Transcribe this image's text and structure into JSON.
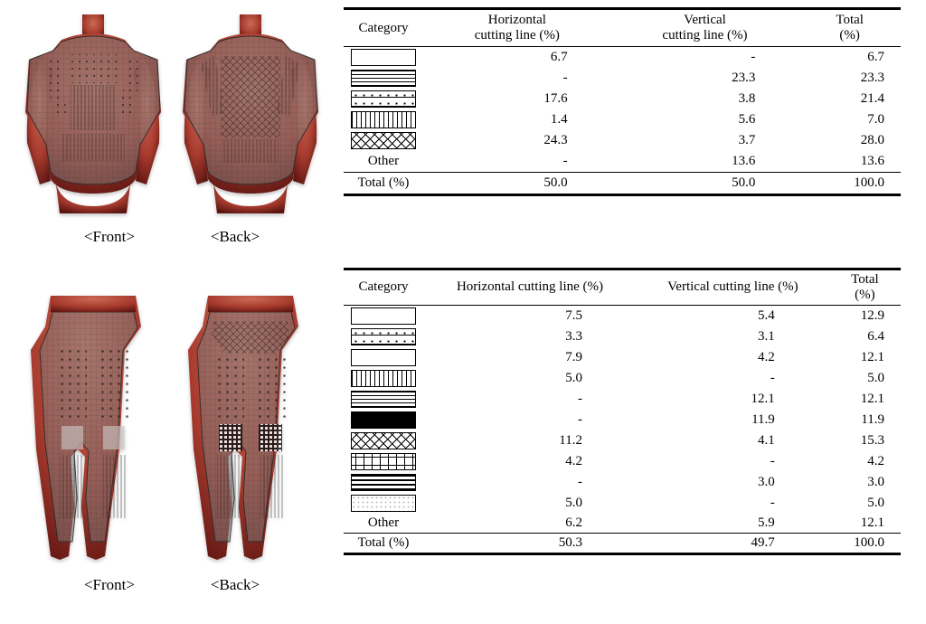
{
  "figures": {
    "upper": {
      "front_label": "<Front>",
      "back_label": "<Back>"
    },
    "lower": {
      "front_label": "<Front>",
      "back_label": "<Back>"
    }
  },
  "tables": {
    "upper": {
      "headers": {
        "cat": "Category",
        "h": "Horizontal\ncutting line (%)",
        "v": "Vertical\ncutting line (%)",
        "t": "Total\n(%)"
      },
      "rows": [
        {
          "pattern": "p-blank",
          "h": "6.7",
          "v": "-",
          "t": "6.7"
        },
        {
          "pattern": "p-hstripe",
          "h": "-",
          "v": "23.3",
          "t": "23.3"
        },
        {
          "pattern": "p-dotdash",
          "h": "17.6",
          "v": "3.8",
          "t": "21.4"
        },
        {
          "pattern": "p-vstripe",
          "h": "1.4",
          "v": "5.6",
          "t": "7.0"
        },
        {
          "pattern": "p-xhatch",
          "h": "24.3",
          "v": "3.7",
          "t": "28.0"
        },
        {
          "label": "Other",
          "h": "-",
          "v": "13.6",
          "t": "13.6"
        }
      ],
      "total": {
        "label": "Total (%)",
        "h": "50.0",
        "v": "50.0",
        "t": "100.0"
      }
    },
    "lower": {
      "headers": {
        "cat": "Category",
        "h": "Horizontal cutting line (%)",
        "v": "Vertical cutting line (%)",
        "t": "Total\n(%)"
      },
      "rows": [
        {
          "pattern": "p-blank",
          "h": "7.5",
          "v": "5.4",
          "t": "12.9"
        },
        {
          "pattern": "p-dotdash",
          "h": "3.3",
          "v": "3.1",
          "t": "6.4"
        },
        {
          "pattern": "p-blank",
          "h": "7.9",
          "v": "4.2",
          "t": "12.1"
        },
        {
          "pattern": "p-vstripe",
          "h": "5.0",
          "v": "-",
          "t": "5.0"
        },
        {
          "pattern": "p-hstripe",
          "h": "-",
          "v": "12.1",
          "t": "12.1"
        },
        {
          "pattern": "p-solid",
          "h": "-",
          "v": "11.9",
          "t": "11.9"
        },
        {
          "pattern": "p-xhatch",
          "h": "11.2",
          "v": "4.1",
          "t": "15.3"
        },
        {
          "pattern": "p-plus",
          "h": "4.2",
          "v": "-",
          "t": "4.2"
        },
        {
          "pattern": "p-grid",
          "h": "-",
          "v": "3.0",
          "t": "3.0"
        },
        {
          "pattern": "p-faint",
          "h": "5.0",
          "v": "-",
          "t": "5.0"
        },
        {
          "label": "Other",
          "h": "6.2",
          "v": "5.9",
          "t": "12.1"
        }
      ],
      "total": {
        "label": "Total (%)",
        "h": "50.3",
        "v": "49.7",
        "t": "100.0"
      }
    }
  },
  "style": {
    "muscle_dark": "#7a1d17",
    "muscle_mid": "#a83b2e",
    "muscle_lite": "#c96a55",
    "skin_shadow": "#5c1511",
    "garment": "rgba(120,120,120,0.55)",
    "garment_edge": "#2b2b2b",
    "mesh": "#333333"
  }
}
